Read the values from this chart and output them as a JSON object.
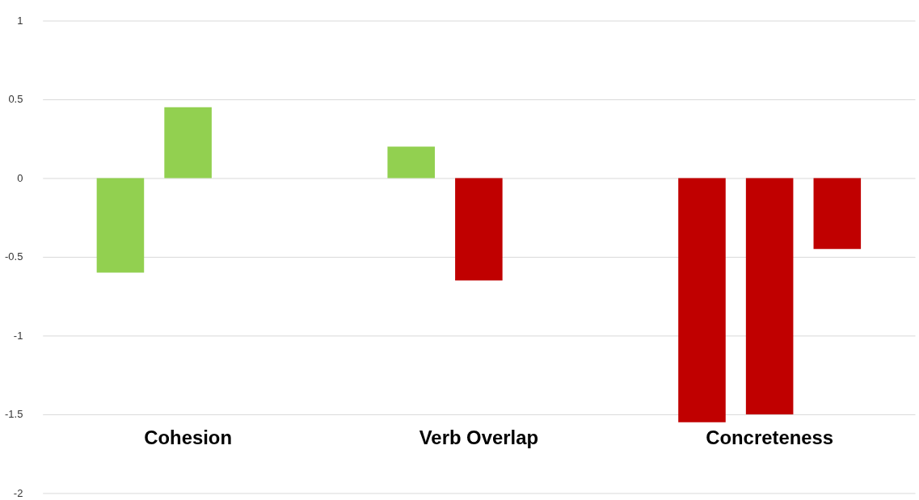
{
  "chart_data": {
    "type": "bar",
    "categories": [
      "Cohesion",
      "Verb Overlap",
      "Concreteness"
    ],
    "series": [
      {
        "values": [
          -0.6,
          0.2,
          -1.55
        ],
        "colors": [
          "#92d050",
          "#92d050",
          "#c00000"
        ]
      },
      {
        "values": [
          0.45,
          -0.65,
          -1.5
        ],
        "colors": [
          "#92d050",
          "#c00000",
          "#c00000"
        ]
      },
      {
        "values": [
          null,
          null,
          -0.45
        ],
        "colors": [
          null,
          null,
          "#c00000"
        ]
      }
    ],
    "ylim": [
      -2,
      1
    ],
    "yticks": [
      -2,
      -1.5,
      -1,
      -0.5,
      0,
      0.5,
      1
    ],
    "grid": "y",
    "legend": false
  }
}
